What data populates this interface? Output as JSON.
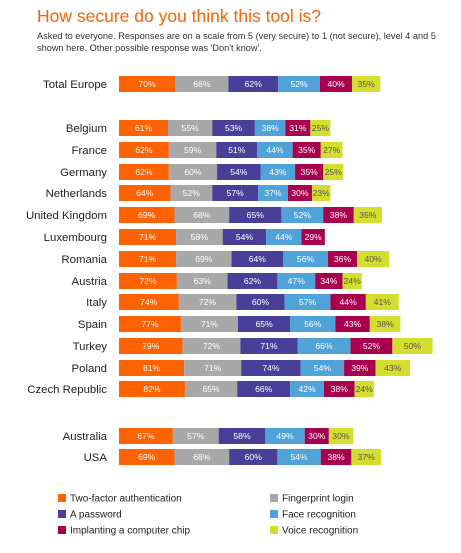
{
  "chart_data": {
    "type": "bar",
    "stacked": true,
    "orientation": "horizontal",
    "title": "How secure do you think this tool is?",
    "subtitle": "Asked to everyone. Responses are on a scale from 5 (very secure) to 1 (not secure), level 4 and 5 shown here.  Other possible response was 'Don't know'.",
    "value_suffix": "%",
    "legend_position": "bottom",
    "grid": false,
    "categories": [
      "Total Europe",
      "Belgium",
      "France",
      "Germany",
      "Netherlands",
      "United Kingdom",
      "Luxembourg",
      "Romania",
      "Austria",
      "Italy",
      "Spain",
      "Turkey",
      "Poland",
      "Czech Republic",
      "Australia",
      "USA"
    ],
    "series": [
      {
        "name": "Two-factor authentication",
        "color": "#ff6200",
        "label_color": "#ffffff",
        "values": [
          70,
          61,
          62,
          62,
          64,
          69,
          71,
          71,
          72,
          74,
          77,
          79,
          81,
          82,
          67,
          69
        ]
      },
      {
        "name": "Fingerprint login",
        "color": "#a8a8a8",
        "label_color": "#ffffff",
        "values": [
          66,
          55,
          59,
          60,
          52,
          68,
          58,
          69,
          63,
          72,
          71,
          72,
          71,
          65,
          57,
          68
        ]
      },
      {
        "name": "A password",
        "color": "#4a3f98",
        "label_color": "#ffffff",
        "values": [
          62,
          53,
          51,
          54,
          57,
          65,
          54,
          64,
          62,
          60,
          65,
          71,
          74,
          66,
          58,
          60
        ]
      },
      {
        "name": "Face recognition",
        "color": "#4fa3d9",
        "label_color": "#ffffff",
        "values": [
          52,
          38,
          44,
          43,
          37,
          52,
          44,
          56,
          47,
          57,
          56,
          66,
          54,
          42,
          49,
          54
        ]
      },
      {
        "name": "Implanting a computer chip",
        "color": "#a8004f",
        "label_color": "#ffffff",
        "values": [
          40,
          31,
          35,
          35,
          30,
          38,
          29,
          36,
          34,
          44,
          43,
          52,
          39,
          38,
          30,
          38
        ]
      },
      {
        "name": "Voice recognition",
        "color": "#d4de2e",
        "label_color": "#555555",
        "values": [
          35,
          25,
          27,
          25,
          23,
          35,
          null,
          40,
          24,
          41,
          38,
          50,
          43,
          24,
          30,
          37
        ]
      }
    ]
  }
}
